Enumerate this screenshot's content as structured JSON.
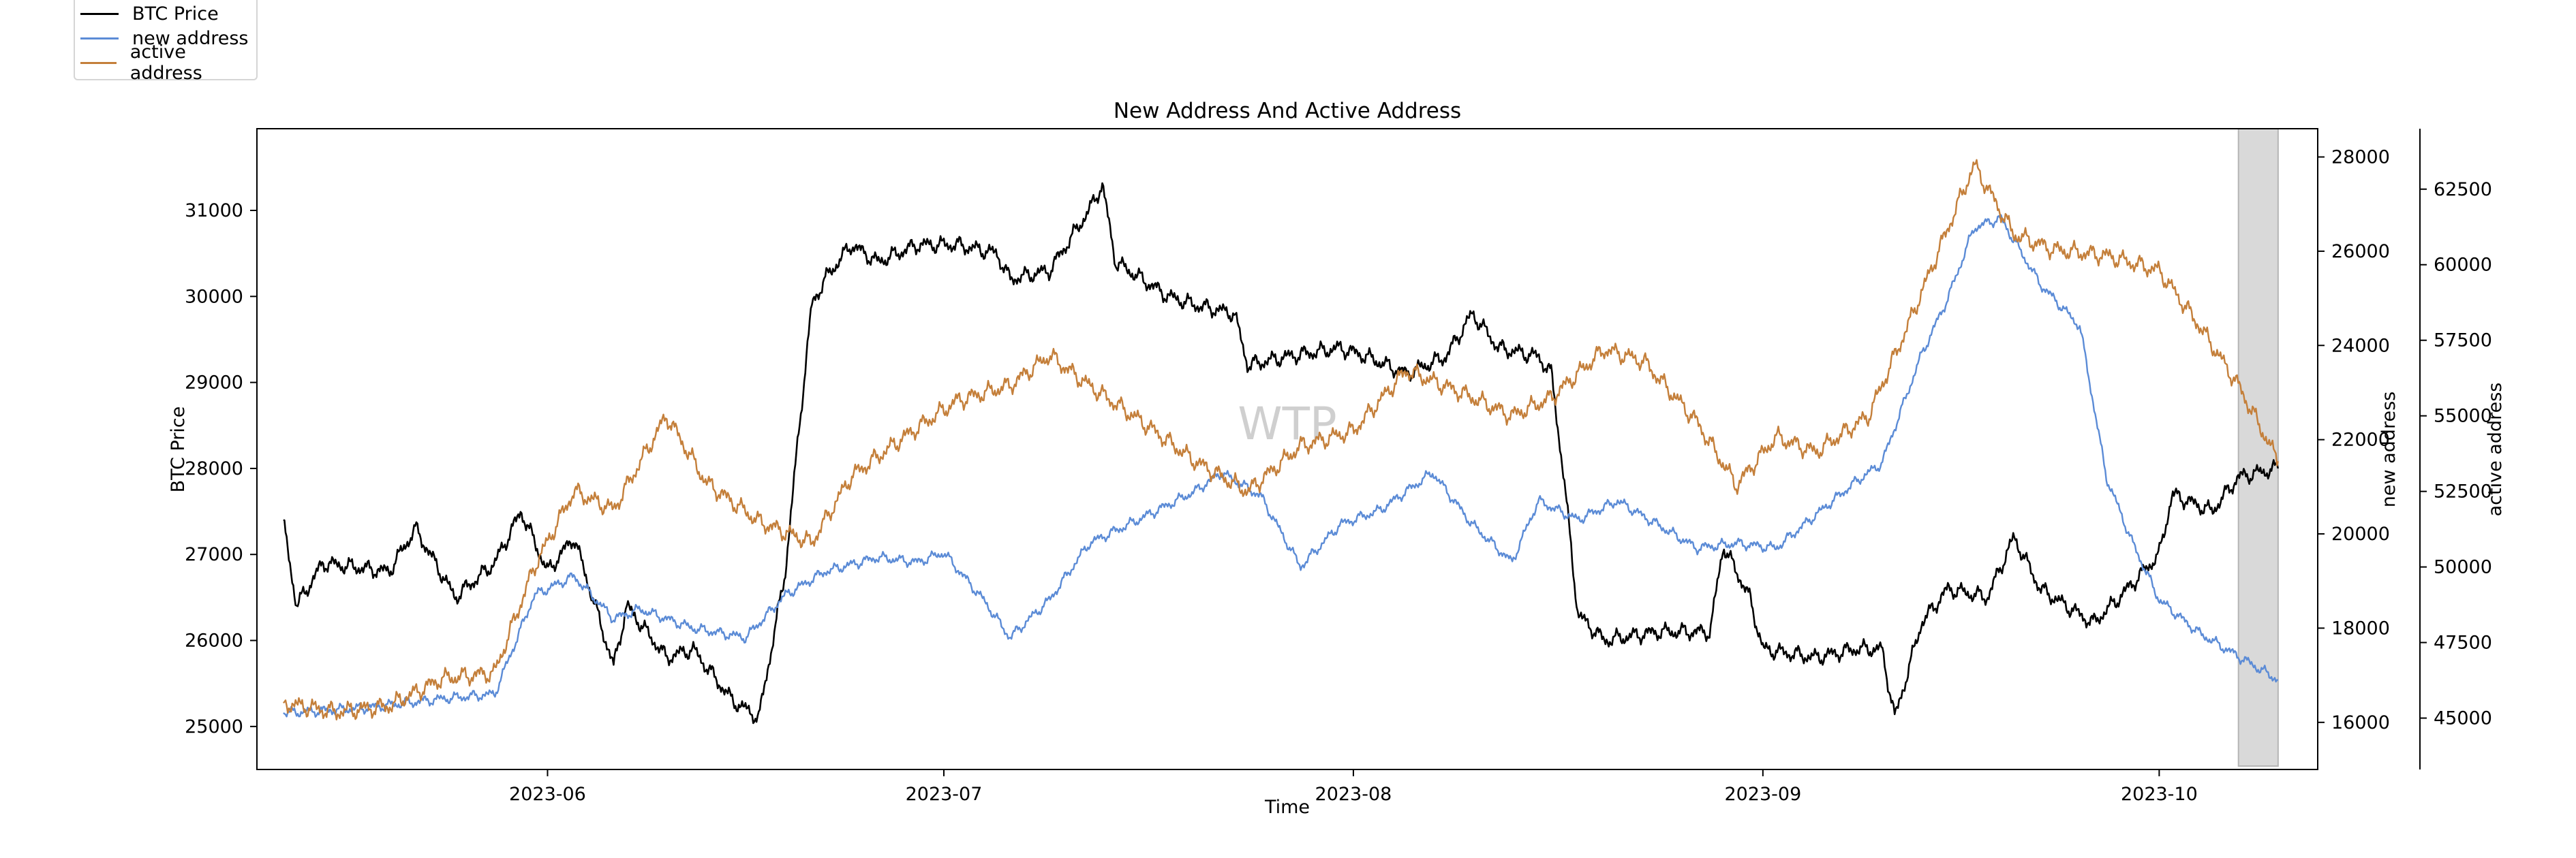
{
  "chart_data": {
    "type": "line",
    "title": "New Address And Active Address",
    "xlabel": "Time",
    "watermark": "WTP",
    "x_range": [
      "2023-05-10",
      "2023-10-13"
    ],
    "x_ticks": [
      "2023-06",
      "2023-07",
      "2023-08",
      "2023-09",
      "2023-10"
    ],
    "highlight_range": [
      "2023-10-07",
      "2023-10-10"
    ],
    "axes": {
      "btc": {
        "label": "BTC Price",
        "ylim": [
          24500,
          31950
        ],
        "ticks": [
          25000,
          26000,
          27000,
          28000,
          29000,
          30000,
          31000
        ]
      },
      "new": {
        "label": "new address",
        "ylim": [
          15000,
          28600
        ],
        "ticks": [
          16000,
          18000,
          20000,
          22000,
          24000,
          26000,
          28000
        ]
      },
      "active": {
        "label": "active address",
        "ylim": [
          43300,
          64500
        ],
        "ticks": [
          45000,
          47500,
          50000,
          52500,
          55000,
          57500,
          60000,
          62500
        ]
      }
    },
    "series": [
      {
        "name": "BTC Price",
        "axis": "btc",
        "color": "#000000",
        "points": [
          [
            "2023-05-12",
            27400
          ],
          [
            "2023-05-13",
            26400
          ],
          [
            "2023-05-15",
            26900
          ],
          [
            "2023-05-20",
            26800
          ],
          [
            "2023-05-22",
            27300
          ],
          [
            "2023-05-25",
            26500
          ],
          [
            "2023-05-28",
            26900
          ],
          [
            "2023-05-30",
            27500
          ],
          [
            "2023-06-01",
            26800
          ],
          [
            "2023-06-03",
            27200
          ],
          [
            "2023-06-06",
            25700
          ],
          [
            "2023-06-07",
            26400
          ],
          [
            "2023-06-10",
            25800
          ],
          [
            "2023-06-12",
            25900
          ],
          [
            "2023-06-15",
            25300
          ],
          [
            "2023-06-17",
            25100
          ],
          [
            "2023-06-19",
            26800
          ],
          [
            "2023-06-20",
            28400
          ],
          [
            "2023-06-21",
            29900
          ],
          [
            "2023-06-22",
            30200
          ],
          [
            "2023-06-24",
            30600
          ],
          [
            "2023-06-26",
            30400
          ],
          [
            "2023-06-29",
            30600
          ],
          [
            "2023-07-02",
            30600
          ],
          [
            "2023-07-05",
            30500
          ],
          [
            "2023-07-06",
            30200
          ],
          [
            "2023-07-09",
            30300
          ],
          [
            "2023-07-12",
            31000
          ],
          [
            "2023-07-13",
            31300
          ],
          [
            "2023-07-14",
            30400
          ],
          [
            "2023-07-18",
            30000
          ],
          [
            "2023-07-20",
            29900
          ],
          [
            "2023-07-23",
            29800
          ],
          [
            "2023-07-24",
            29200
          ],
          [
            "2023-07-27",
            29300
          ],
          [
            "2023-07-31",
            29400
          ],
          [
            "2023-08-02",
            29300
          ],
          [
            "2023-08-05",
            29100
          ],
          [
            "2023-08-08",
            29300
          ],
          [
            "2023-08-10",
            29800
          ],
          [
            "2023-08-12",
            29400
          ],
          [
            "2023-08-15",
            29300
          ],
          [
            "2023-08-16",
            29100
          ],
          [
            "2023-08-17",
            27800
          ],
          [
            "2023-08-18",
            26300
          ],
          [
            "2023-08-20",
            26000
          ],
          [
            "2023-08-24",
            26100
          ],
          [
            "2023-08-28",
            26100
          ],
          [
            "2023-08-29",
            27100
          ],
          [
            "2023-08-31",
            26500
          ],
          [
            "2023-09-01",
            25900
          ],
          [
            "2023-09-05",
            25800
          ],
          [
            "2023-09-08",
            25900
          ],
          [
            "2023-09-10",
            25900
          ],
          [
            "2023-09-11",
            25100
          ],
          [
            "2023-09-13",
            26200
          ],
          [
            "2023-09-15",
            26600
          ],
          [
            "2023-09-18",
            26500
          ],
          [
            "2023-09-20",
            27200
          ],
          [
            "2023-09-22",
            26600
          ],
          [
            "2023-09-26",
            26200
          ],
          [
            "2023-09-28",
            26500
          ],
          [
            "2023-10-01",
            27000
          ],
          [
            "2023-10-02",
            27700
          ],
          [
            "2023-10-05",
            27500
          ],
          [
            "2023-10-07",
            27900
          ],
          [
            "2023-10-10",
            28000
          ]
        ]
      },
      {
        "name": "new address",
        "axis": "new",
        "color": "#5b8bd6",
        "points": [
          [
            "2023-05-12",
            16200
          ],
          [
            "2023-05-18",
            16300
          ],
          [
            "2023-05-24",
            16500
          ],
          [
            "2023-05-28",
            16600
          ],
          [
            "2023-05-31",
            18700
          ],
          [
            "2023-06-03",
            19100
          ],
          [
            "2023-06-06",
            18200
          ],
          [
            "2023-06-08",
            18400
          ],
          [
            "2023-06-12",
            18000
          ],
          [
            "2023-06-16",
            17800
          ],
          [
            "2023-06-19",
            18700
          ],
          [
            "2023-06-22",
            19200
          ],
          [
            "2023-06-26",
            19500
          ],
          [
            "2023-06-29",
            19400
          ],
          [
            "2023-07-01",
            19600
          ],
          [
            "2023-07-04",
            18600
          ],
          [
            "2023-07-06",
            17800
          ],
          [
            "2023-07-09",
            18600
          ],
          [
            "2023-07-12",
            19800
          ],
          [
            "2023-07-15",
            20200
          ],
          [
            "2023-07-20",
            20900
          ],
          [
            "2023-07-22",
            21300
          ],
          [
            "2023-07-25",
            20800
          ],
          [
            "2023-07-28",
            19300
          ],
          [
            "2023-07-31",
            20200
          ],
          [
            "2023-08-03",
            20500
          ],
          [
            "2023-08-07",
            21300
          ],
          [
            "2023-08-10",
            20200
          ],
          [
            "2023-08-13",
            19400
          ],
          [
            "2023-08-15",
            20700
          ],
          [
            "2023-08-18",
            20300
          ],
          [
            "2023-08-21",
            20700
          ],
          [
            "2023-08-24",
            20200
          ],
          [
            "2023-08-27",
            19700
          ],
          [
            "2023-08-30",
            19800
          ],
          [
            "2023-09-02",
            19700
          ],
          [
            "2023-09-05",
            20400
          ],
          [
            "2023-09-08",
            21100
          ],
          [
            "2023-09-10",
            21500
          ],
          [
            "2023-09-13",
            23800
          ],
          [
            "2023-09-15",
            25000
          ],
          [
            "2023-09-17",
            26500
          ],
          [
            "2023-09-19",
            26700
          ],
          [
            "2023-09-22",
            25300
          ],
          [
            "2023-09-25",
            24400
          ],
          [
            "2023-09-27",
            21200
          ],
          [
            "2023-09-29",
            19800
          ],
          [
            "2023-10-01",
            18600
          ],
          [
            "2023-10-04",
            17900
          ],
          [
            "2023-10-07",
            17400
          ],
          [
            "2023-10-10",
            16900
          ]
        ]
      },
      {
        "name": "active address",
        "axis": "active",
        "color": "#c47f3a",
        "points": [
          [
            "2023-05-12",
            45500
          ],
          [
            "2023-05-16",
            45200
          ],
          [
            "2023-05-20",
            45400
          ],
          [
            "2023-05-24",
            46300
          ],
          [
            "2023-05-28",
            46500
          ],
          [
            "2023-05-31",
            50000
          ],
          [
            "2023-06-03",
            52500
          ],
          [
            "2023-06-06",
            51900
          ],
          [
            "2023-06-10",
            55000
          ],
          [
            "2023-06-13",
            52800
          ],
          [
            "2023-06-17",
            51500
          ],
          [
            "2023-06-21",
            50800
          ],
          [
            "2023-06-24",
            53000
          ],
          [
            "2023-06-28",
            54300
          ],
          [
            "2023-07-02",
            55500
          ],
          [
            "2023-07-06",
            56000
          ],
          [
            "2023-07-09",
            57000
          ],
          [
            "2023-07-12",
            56000
          ],
          [
            "2023-07-16",
            54800
          ],
          [
            "2023-07-20",
            53500
          ],
          [
            "2023-07-24",
            52500
          ],
          [
            "2023-07-28",
            54000
          ],
          [
            "2023-08-01",
            54500
          ],
          [
            "2023-08-05",
            56500
          ],
          [
            "2023-08-09",
            55800
          ],
          [
            "2023-08-13",
            55000
          ],
          [
            "2023-08-16",
            55600
          ],
          [
            "2023-08-20",
            57200
          ],
          [
            "2023-08-23",
            56800
          ],
          [
            "2023-08-27",
            54800
          ],
          [
            "2023-08-30",
            52700
          ],
          [
            "2023-09-02",
            54300
          ],
          [
            "2023-09-05",
            53800
          ],
          [
            "2023-09-09",
            55000
          ],
          [
            "2023-09-12",
            58000
          ],
          [
            "2023-09-15",
            61200
          ],
          [
            "2023-09-17",
            63300
          ],
          [
            "2023-09-20",
            61000
          ],
          [
            "2023-09-23",
            60500
          ],
          [
            "2023-09-27",
            60300
          ],
          [
            "2023-10-01",
            59800
          ],
          [
            "2023-10-04",
            58000
          ],
          [
            "2023-10-07",
            56000
          ],
          [
            "2023-10-10",
            53500
          ]
        ]
      }
    ]
  },
  "legend": {
    "entries": [
      {
        "label": "BTC Price",
        "color": "#000000"
      },
      {
        "label": "new address",
        "color": "#5b8bd6"
      },
      {
        "label": "active address",
        "color": "#c47f3a"
      }
    ]
  }
}
